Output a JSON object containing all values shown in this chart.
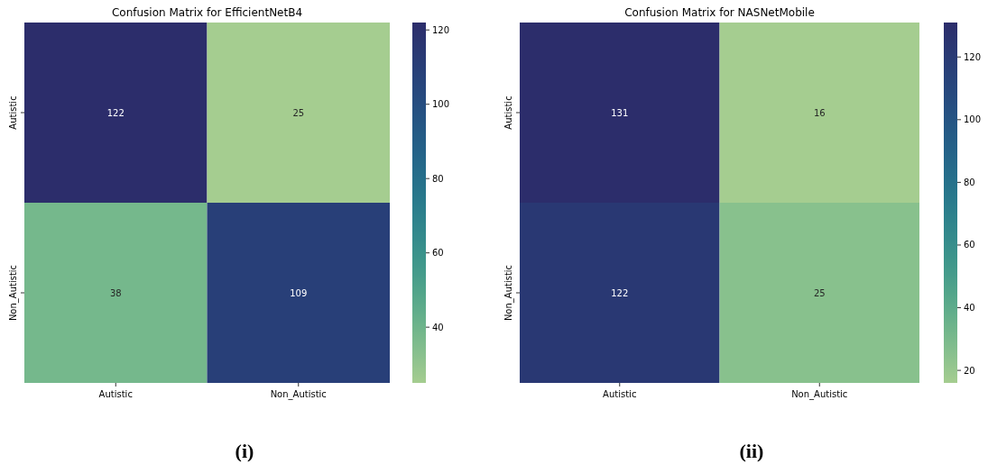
{
  "chart_data": [
    {
      "type": "heatmap",
      "title": "Confusion Matrix for EfficientNetB4",
      "categories": [
        "Autistic",
        "Non_Autistic"
      ],
      "y_categories": [
        "Autistic",
        "Non_Autistic"
      ],
      "cells": [
        [
          122,
          25
        ],
        [
          38,
          109
        ]
      ],
      "data_labels": true,
      "clim": [
        25,
        122
      ],
      "cticks": [
        40,
        60,
        80,
        100,
        120
      ],
      "annotations": [
        "(i)"
      ]
    },
    {
      "type": "heatmap",
      "title": "Confusion Matrix for NASNetMobile",
      "categories": [
        "Autistic",
        "Non_Autistic"
      ],
      "y_categories": [
        "Autistic",
        "Non_Autistic"
      ],
      "cells": [
        [
          131,
          16
        ],
        [
          122,
          25
        ]
      ],
      "data_labels": true,
      "clim": [
        16,
        131
      ],
      "cticks": [
        20,
        40,
        60,
        80,
        100,
        120
      ],
      "annotations": [
        "(ii)"
      ]
    }
  ]
}
